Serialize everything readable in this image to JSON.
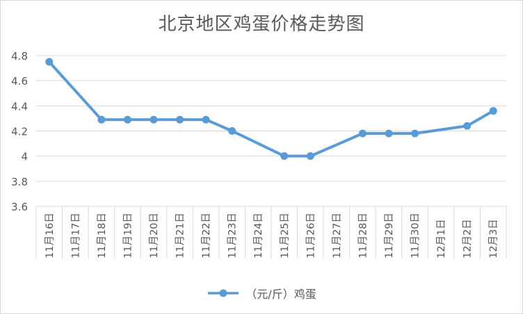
{
  "chart_data": {
    "type": "line",
    "title": "北京地区鸡蛋价格走势图",
    "xlabel": "",
    "ylabel": "",
    "categories": [
      "11月16日",
      "11月17日",
      "11月18日",
      "11月19日",
      "11月20日",
      "11月21日",
      "11月22日",
      "11月23日",
      "11月24日",
      "11月25日",
      "11月26日",
      "11月27日",
      "11月28日",
      "11月29日",
      "11月30日",
      "12月1日",
      "12月2日",
      "12月3日"
    ],
    "series": [
      {
        "name": "（元/斤）鸡蛋",
        "values": [
          4.75,
          null,
          4.29,
          4.29,
          4.29,
          4.29,
          4.29,
          4.2,
          null,
          4.0,
          4.0,
          null,
          4.18,
          4.18,
          4.18,
          null,
          4.24,
          4.36
        ],
        "color": "#5b9bd5"
      }
    ],
    "ylim": [
      3.6,
      4.8
    ],
    "yticks": [
      "3.6",
      "3.8",
      "4",
      "4.2",
      "4.4",
      "4.6",
      "4.8"
    ],
    "grid": true,
    "legend_position": "bottom"
  }
}
